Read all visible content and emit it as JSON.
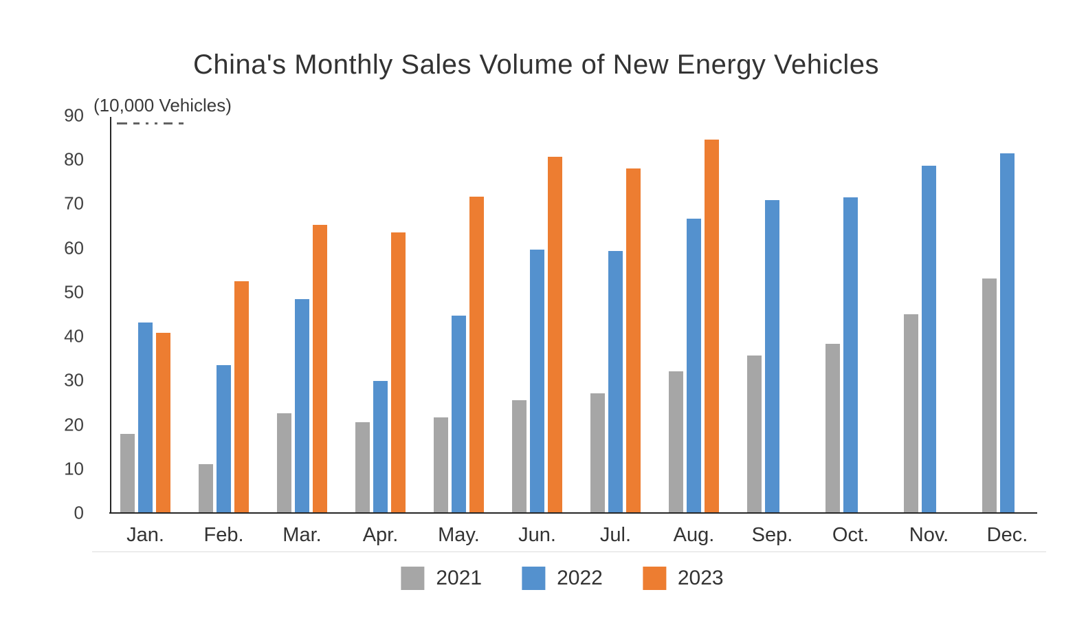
{
  "page": {
    "background": "#ffffff"
  },
  "chart_data": {
    "type": "bar",
    "title": "China's Monthly Sales Volume of New Energy Vehicles",
    "unit_label": "(10,000 Vehicles)",
    "categories": [
      "Jan.",
      "Feb.",
      "Mar.",
      "Apr.",
      "May.",
      "Jun.",
      "Jul.",
      "Aug.",
      "Sep.",
      "Oct.",
      "Nov.",
      "Dec."
    ],
    "series": [
      {
        "name": "2021",
        "color": "#a6a6a6",
        "values": [
          17.9,
          11.0,
          22.6,
          20.6,
          21.7,
          25.6,
          27.1,
          32.1,
          35.7,
          38.3,
          45.0,
          53.1
        ]
      },
      {
        "name": "2022",
        "color": "#5491ce",
        "values": [
          43.1,
          33.4,
          48.4,
          29.9,
          44.7,
          59.6,
          59.3,
          66.6,
          70.8,
          71.4,
          78.6,
          81.4
        ]
      },
      {
        "name": "2023",
        "color": "#ed7d31",
        "values": [
          40.8,
          52.5,
          65.3,
          63.6,
          71.7,
          80.6,
          78.0,
          84.6,
          null,
          null,
          null,
          null
        ]
      }
    ],
    "xlabel": "",
    "ylabel": "(10,000 Vehicles)",
    "ylim": [
      0,
      90
    ],
    "y_ticks": [
      0,
      10,
      20,
      30,
      40,
      50,
      60,
      70,
      80,
      90
    ],
    "grid": false,
    "legend_position": "bottom",
    "axis_color": "#262626",
    "text_color": "#333333"
  }
}
